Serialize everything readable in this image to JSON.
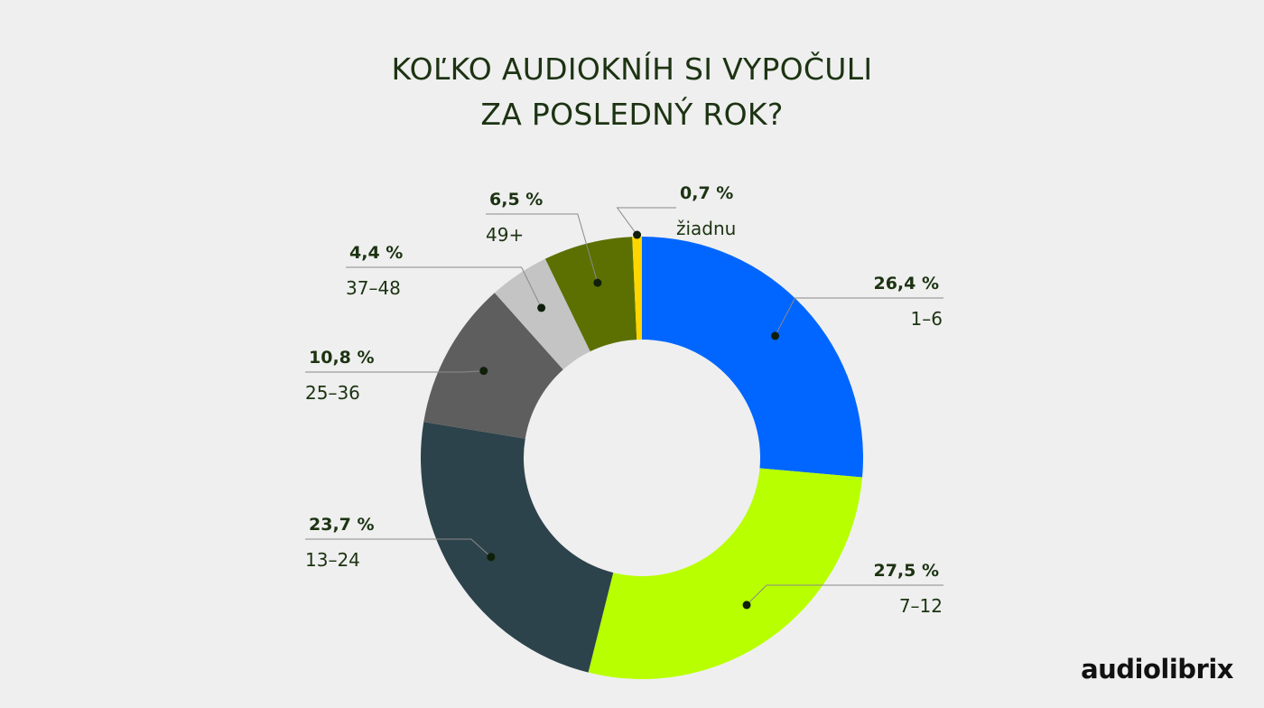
{
  "title_lines": [
    "KOĽKO AUDIOKNÍH SI VYPOČULI",
    "ZA POSLEDNÝ ROK?"
  ],
  "logo_text": "audiolibrix",
  "chart_data": {
    "type": "pie",
    "title": "KOĽKO AUDIOKNÍH SI VYPOČULI ZA POSLEDNÝ ROK?",
    "donut": true,
    "slices": [
      {
        "label": "1–6",
        "value": 26.4,
        "display": "26,4 %",
        "color": "#0066ff"
      },
      {
        "label": "7–12",
        "value": 27.5,
        "display": "27,5 %",
        "color": "#b8ff00"
      },
      {
        "label": "13–24",
        "value": 23.7,
        "display": "23,7 %",
        "color": "#2d434b"
      },
      {
        "label": "25–36",
        "value": 10.8,
        "display": "10,8 %",
        "color": "#5e5e5e"
      },
      {
        "label": "37–48",
        "value": 4.4,
        "display": "4,4 %",
        "color": "#c4c4c4"
      },
      {
        "label": "49+",
        "value": 6.5,
        "display": "6,5 %",
        "color": "#5b7000"
      },
      {
        "label": "žiadnu",
        "value": 0.7,
        "display": "0,7 %",
        "color": "#ffd600"
      }
    ]
  }
}
